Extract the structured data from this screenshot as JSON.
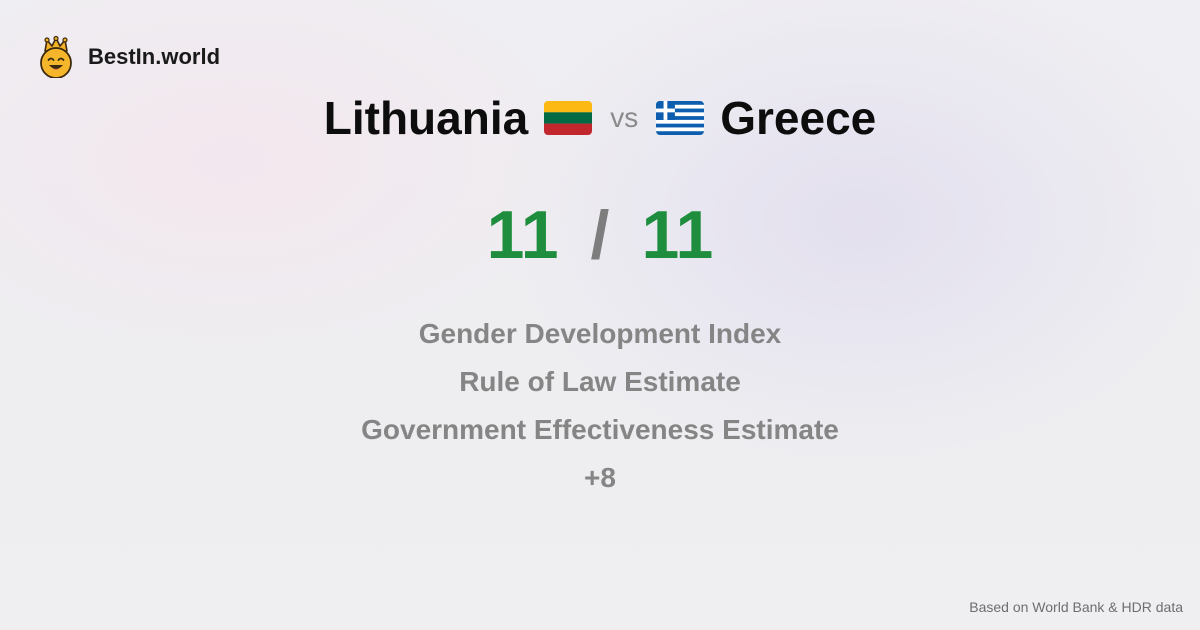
{
  "brand": {
    "name": "BestIn.world",
    "icon": "crown-smiley-icon"
  },
  "comparison": {
    "left": {
      "country": "Lithuania",
      "flag_icon": "lithuania-flag-icon",
      "score": "11"
    },
    "vs_label": "vs",
    "right": {
      "country": "Greece",
      "flag_icon": "greece-flag-icon",
      "score": "11"
    },
    "separator": "/"
  },
  "metrics": [
    "Gender Development Index",
    "Rule of Law Estimate",
    "Government Effectiveness Estimate",
    "+8"
  ],
  "footer": {
    "source": "Based on World Bank & HDR data"
  },
  "colors": {
    "score": "#1e8e3e",
    "metric_text": "#858585",
    "lithuania_flag": [
      "#fdb913",
      "#006a44",
      "#c1272d"
    ],
    "greece_flag": [
      "#0d5eaf",
      "#ffffff"
    ]
  }
}
